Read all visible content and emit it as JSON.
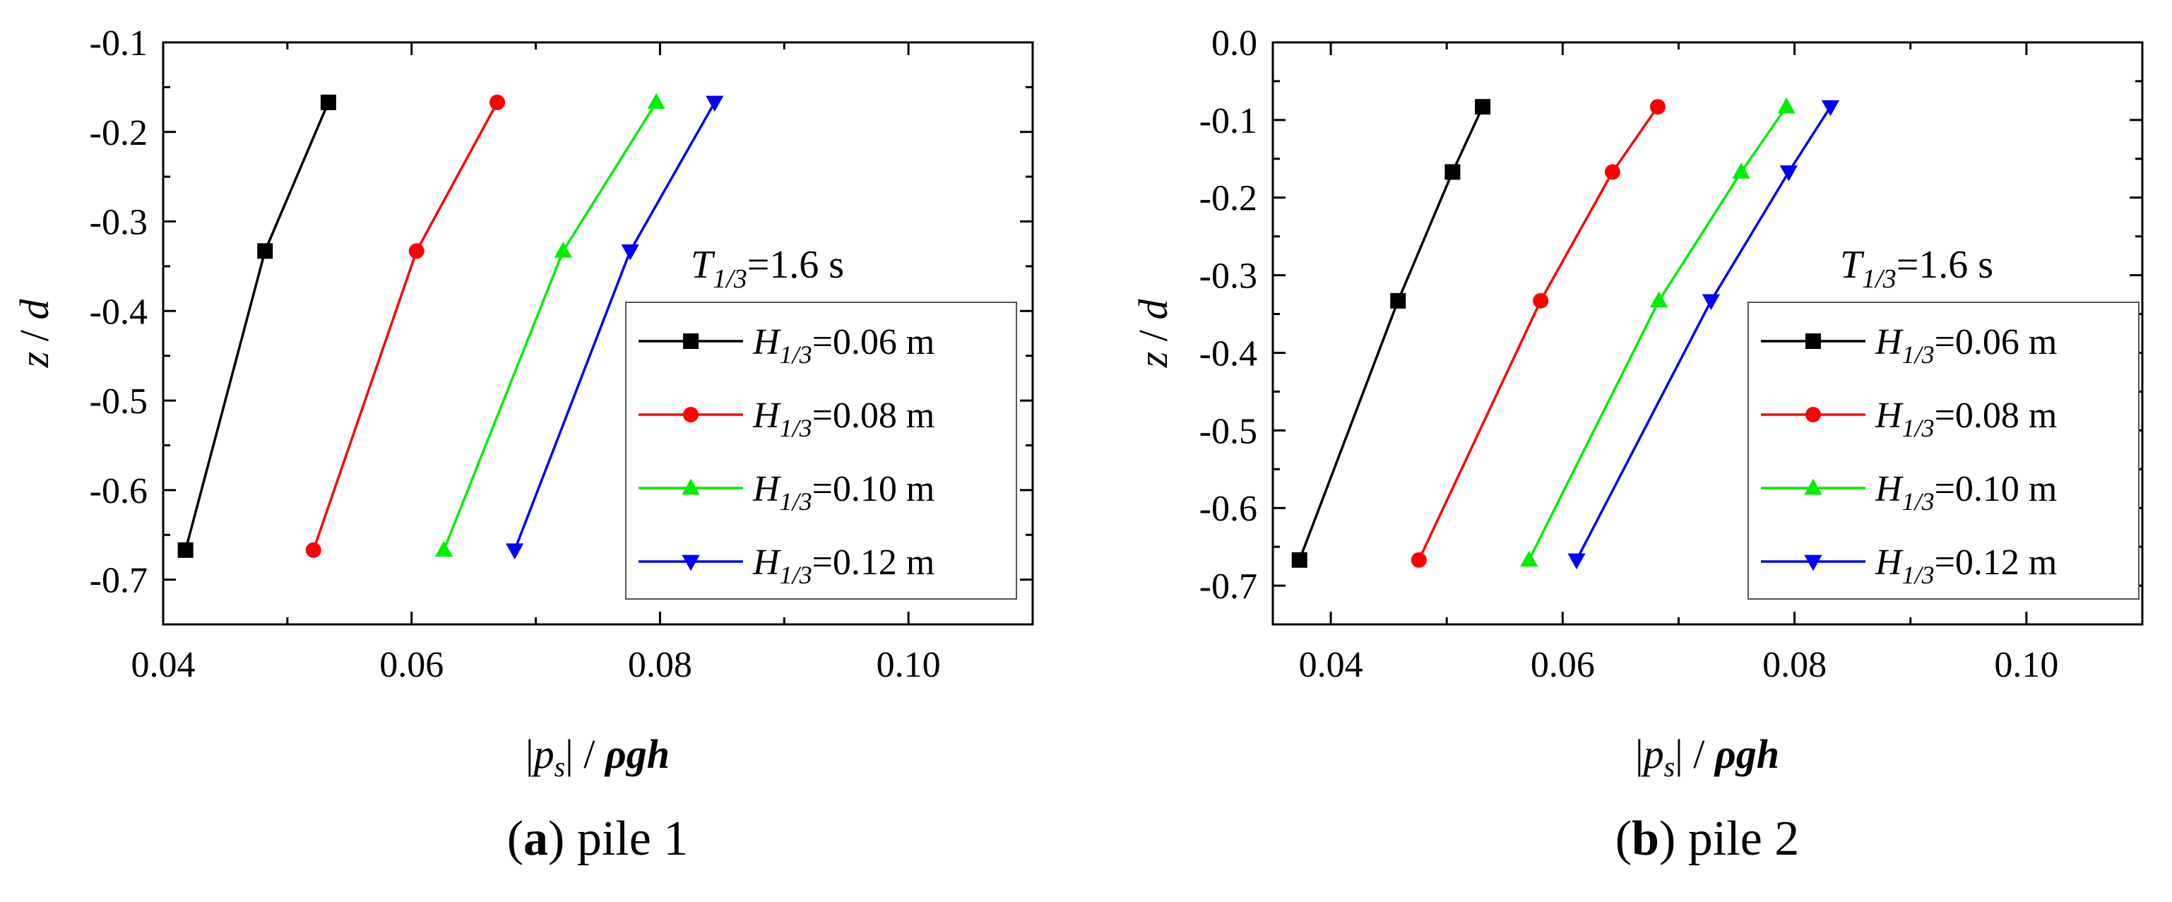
{
  "chart_data": [
    {
      "type": "line",
      "panel_id": "a",
      "panel_name": "pile 1",
      "annotation": "T1/3=1.6 s",
      "annotation_parts": {
        "main": "T",
        "sub": "1/3",
        "rest": "=1.6 s"
      },
      "xlabel": "|ps| / ρgh",
      "xlabel_parts": {
        "bar1": "|",
        "p": "p",
        "s": "s",
        "bar2": "|",
        "slash": " / ",
        "bold": "ρgh"
      },
      "ylabel": "z / d",
      "ylabel_parts": {
        "z": "z",
        "slash": " / ",
        "d": "d"
      },
      "xlim": [
        0.04,
        0.11
      ],
      "ylim": [
        -0.75,
        -0.1
      ],
      "xticks": [
        0.04,
        0.06,
        0.08,
        0.1
      ],
      "xtick_labels": [
        "0.04",
        "0.06",
        "0.08",
        "0.10"
      ],
      "yticks": [
        -0.7,
        -0.6,
        -0.5,
        -0.4,
        -0.3,
        -0.2,
        -0.1
      ],
      "ytick_labels": [
        "-0.7",
        "-0.6",
        "-0.5",
        "-0.4",
        "-0.3",
        "-0.2",
        "-0.1"
      ],
      "series": [
        {
          "name": "H1/3=0.06 m",
          "label_sub": "1/3",
          "label_rest": "=0.06 m",
          "color": "#000000",
          "marker": "square",
          "x": [
            0.0418,
            0.0482,
            0.0533
          ],
          "y": [
            -0.667,
            -0.333,
            -0.167
          ]
        },
        {
          "name": "H1/3=0.08 m",
          "label_sub": "1/3",
          "label_rest": "=0.08 m",
          "color": "#ff0000",
          "marker": "circle",
          "x": [
            0.0521,
            0.0604,
            0.0669
          ],
          "y": [
            -0.667,
            -0.333,
            -0.167
          ]
        },
        {
          "name": "H1/3=0.10 m",
          "label_sub": "1/3",
          "label_rest": "=0.10 m",
          "color": "#00ee00",
          "marker": "triangle-up",
          "x": [
            0.0626,
            0.0722,
            0.0797
          ],
          "y": [
            -0.667,
            -0.333,
            -0.167
          ]
        },
        {
          "name": "H1/3=0.12 m",
          "label_sub": "1/3",
          "label_rest": "=0.12 m",
          "color": "#0000ff",
          "marker": "triangle-down",
          "x": [
            0.0683,
            0.0776,
            0.0844
          ],
          "y": [
            -0.667,
            -0.333,
            -0.167
          ]
        }
      ]
    },
    {
      "type": "line",
      "panel_id": "b",
      "panel_name": "pile 2",
      "annotation": "T1/3=1.6 s",
      "annotation_parts": {
        "main": "T",
        "sub": "1/3",
        "rest": "=1.6 s"
      },
      "xlabel": "|ps| / ρgh",
      "xlabel_parts": {
        "bar1": "|",
        "p": "p",
        "s": "s",
        "bar2": "|",
        "slash": " / ",
        "bold": "ρgh"
      },
      "ylabel": "z / d",
      "ylabel_parts": {
        "z": "z",
        "slash": " / ",
        "d": "d"
      },
      "xlim": [
        0.035,
        0.11
      ],
      "ylim": [
        -0.75,
        0.0
      ],
      "xticks": [
        0.04,
        0.06,
        0.08,
        0.1
      ],
      "xtick_labels": [
        "0.04",
        "0.06",
        "0.08",
        "0.10"
      ],
      "yticks": [
        -0.7,
        -0.6,
        -0.5,
        -0.4,
        -0.3,
        -0.2,
        -0.1,
        0.0
      ],
      "ytick_labels": [
        "-0.7",
        "-0.6",
        "-0.5",
        "-0.4",
        "-0.3",
        "-0.2",
        "-0.1",
        "0.0"
      ],
      "series": [
        {
          "name": "H1/3=0.06 m",
          "label_sub": "1/3",
          "label_rest": "=0.06 m",
          "color": "#000000",
          "marker": "square",
          "x": [
            0.0373,
            0.0458,
            0.0505,
            0.0531
          ],
          "y": [
            -0.667,
            -0.333,
            -0.167,
            -0.083
          ]
        },
        {
          "name": "H1/3=0.08 m",
          "label_sub": "1/3",
          "label_rest": "=0.08 m",
          "color": "#ff0000",
          "marker": "circle",
          "x": [
            0.0476,
            0.0581,
            0.0643,
            0.0682
          ],
          "y": [
            -0.667,
            -0.333,
            -0.167,
            -0.083
          ]
        },
        {
          "name": "H1/3=0.10 m",
          "label_sub": "1/3",
          "label_rest": "=0.10 m",
          "color": "#00ee00",
          "marker": "triangle-up",
          "x": [
            0.0571,
            0.0683,
            0.0754,
            0.0793
          ],
          "y": [
            -0.667,
            -0.333,
            -0.167,
            -0.083
          ]
        },
        {
          "name": "H1/3=0.12 m",
          "label_sub": "1/3",
          "label_rest": "=0.12 m",
          "color": "#0000ff",
          "marker": "triangle-down",
          "x": [
            0.0612,
            0.0728,
            0.0795,
            0.0831
          ],
          "y": [
            -0.667,
            -0.333,
            -0.167,
            -0.083
          ]
        }
      ]
    }
  ]
}
